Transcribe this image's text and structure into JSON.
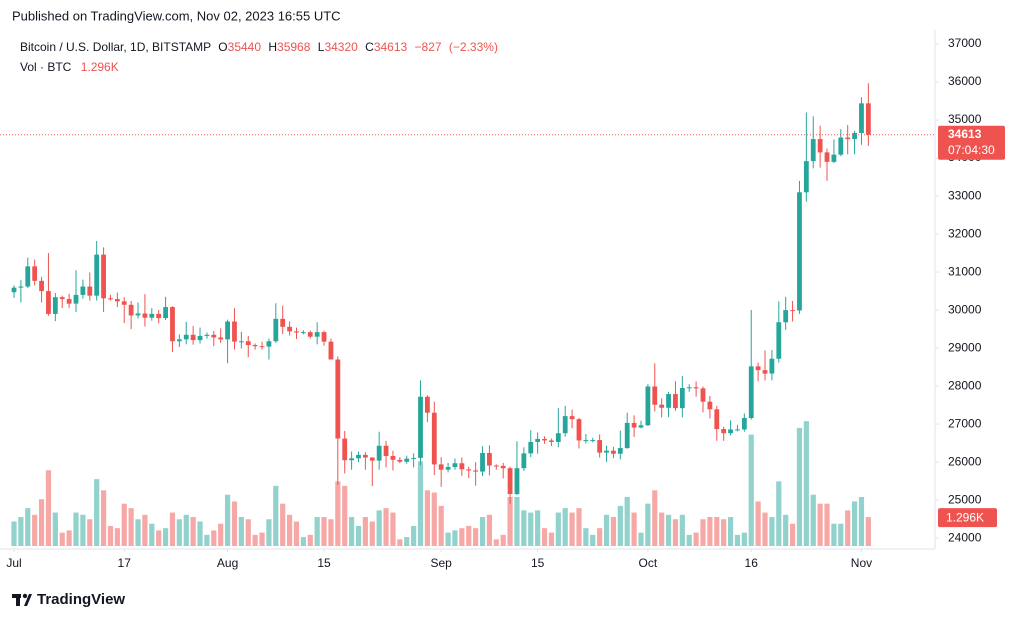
{
  "published": "Published on TradingView.com, Nov 02, 2023 16:55 UTC",
  "footer": "TradingView",
  "chart_data": {
    "type": "candlestick",
    "title": "Bitcoin / U.S. Dollar, 1D, BITSTAMP",
    "volume_title": "Vol · BTC",
    "countdown": "07:04:30",
    "legend": {
      "prefixes": [
        "O",
        "H",
        "L",
        "C"
      ],
      "change": {
        "value": -827,
        "label": "−827"
      },
      "change_pct": {
        "value": -2.33,
        "label": "(−2.33%)"
      }
    },
    "up_color": "#26a69a",
    "down_color": "#ef5350",
    "volume_opacity": 0.5,
    "grid": false,
    "ylim": [
      23740,
      37370
    ],
    "yticks": [
      24000,
      25000,
      26000,
      27000,
      28000,
      29000,
      30000,
      31000,
      32000,
      33000,
      34000,
      35000,
      36000,
      37000
    ],
    "volume_ylim": [
      0,
      7000
    ],
    "xticks": [
      {
        "value": "2023-07-01",
        "label": "Jul"
      },
      {
        "value": "2023-07-17",
        "label": "17"
      },
      {
        "value": "2023-08-01",
        "label": "Aug"
      },
      {
        "value": "2023-08-15",
        "label": "15"
      },
      {
        "value": "2023-09-01",
        "label": "Sep"
      },
      {
        "value": "2023-09-15",
        "label": "15"
      },
      {
        "value": "2023-10-01",
        "label": "Oct"
      },
      {
        "value": "2023-10-16",
        "label": "16"
      },
      {
        "value": "2023-11-01",
        "label": "Nov"
      }
    ],
    "categories": [
      "2023-07-01",
      "2023-07-02",
      "2023-07-03",
      "2023-07-04",
      "2023-07-05",
      "2023-07-06",
      "2023-07-07",
      "2023-07-08",
      "2023-07-09",
      "2023-07-10",
      "2023-07-11",
      "2023-07-12",
      "2023-07-13",
      "2023-07-14",
      "2023-07-15",
      "2023-07-16",
      "2023-07-17",
      "2023-07-18",
      "2023-07-19",
      "2023-07-20",
      "2023-07-21",
      "2023-07-22",
      "2023-07-23",
      "2023-07-24",
      "2023-07-25",
      "2023-07-26",
      "2023-07-27",
      "2023-07-28",
      "2023-07-29",
      "2023-07-30",
      "2023-07-31",
      "2023-08-01",
      "2023-08-02",
      "2023-08-03",
      "2023-08-04",
      "2023-08-05",
      "2023-08-06",
      "2023-08-07",
      "2023-08-08",
      "2023-08-09",
      "2023-08-10",
      "2023-08-11",
      "2023-08-12",
      "2023-08-13",
      "2023-08-14",
      "2023-08-15",
      "2023-08-16",
      "2023-08-17",
      "2023-08-18",
      "2023-08-19",
      "2023-08-20",
      "2023-08-21",
      "2023-08-22",
      "2023-08-23",
      "2023-08-24",
      "2023-08-25",
      "2023-08-26",
      "2023-08-27",
      "2023-08-28",
      "2023-08-29",
      "2023-08-30",
      "2023-08-31",
      "2023-09-01",
      "2023-09-02",
      "2023-09-03",
      "2023-09-04",
      "2023-09-05",
      "2023-09-06",
      "2023-09-07",
      "2023-09-08",
      "2023-09-09",
      "2023-09-10",
      "2023-09-11",
      "2023-09-12",
      "2023-09-13",
      "2023-09-14",
      "2023-09-15",
      "2023-09-16",
      "2023-09-17",
      "2023-09-18",
      "2023-09-19",
      "2023-09-20",
      "2023-09-21",
      "2023-09-22",
      "2023-09-23",
      "2023-09-24",
      "2023-09-25",
      "2023-09-26",
      "2023-09-27",
      "2023-09-28",
      "2023-09-29",
      "2023-09-30",
      "2023-10-01",
      "2023-10-02",
      "2023-10-03",
      "2023-10-04",
      "2023-10-05",
      "2023-10-06",
      "2023-10-07",
      "2023-10-08",
      "2023-10-09",
      "2023-10-10",
      "2023-10-11",
      "2023-10-12",
      "2023-10-13",
      "2023-10-14",
      "2023-10-15",
      "2023-10-16",
      "2023-10-17",
      "2023-10-18",
      "2023-10-19",
      "2023-10-20",
      "2023-10-21",
      "2023-10-22",
      "2023-10-23",
      "2023-10-24",
      "2023-10-25",
      "2023-10-26",
      "2023-10-27",
      "2023-10-28",
      "2023-10-29",
      "2023-10-30",
      "2023-10-31",
      "2023-11-01",
      "2023-11-02"
    ],
    "open": [
      30470,
      30590,
      30620,
      31150,
      30770,
      30500,
      29900,
      30340,
      30290,
      30170,
      30400,
      30620,
      30380,
      31460,
      30310,
      30290,
      30230,
      30140,
      29860,
      29910,
      29800,
      29900,
      29790,
      30080,
      29180,
      29230,
      29350,
      29210,
      29320,
      29350,
      29280,
      29230,
      29700,
      29170,
      29180,
      29080,
      29050,
      29040,
      29180,
      29770,
      29560,
      29440,
      29410,
      29420,
      29300,
      29420,
      29170,
      28700,
      26620,
      26050,
      26100,
      26190,
      26120,
      26040,
      26430,
      26160,
      26060,
      26010,
      26090,
      26110,
      27720,
      27300,
      25940,
      25800,
      25870,
      25970,
      25810,
      25780,
      25750,
      26240,
      25910,
      25900,
      25840,
      25160,
      25840,
      26230,
      26530,
      26610,
      26570,
      26530,
      26760,
      27210,
      27130,
      26570,
      26580,
      26580,
      26250,
      26300,
      26220,
      26370,
      27030,
      26910,
      26970,
      27990,
      27510,
      27430,
      27790,
      27420,
      27950,
      27970,
      27940,
      27590,
      27390,
      26870,
      26760,
      26860,
      26860,
      27160,
      28520,
      28420,
      28330,
      28720,
      29680,
      30000,
      29990,
      33100,
      33920,
      34500,
      34150,
      33900,
      34090,
      34540,
      34500,
      34660,
      35440
    ],
    "high": [
      30650,
      30790,
      31380,
      31330,
      30880,
      31500,
      30450,
      30380,
      30430,
      31050,
      30800,
      30990,
      31820,
      31650,
      30400,
      30460,
      30340,
      30240,
      30200,
      30420,
      30050,
      30000,
      30350,
      30100,
      29360,
      29690,
      29580,
      29540,
      29410,
      29450,
      29520,
      29750,
      30050,
      29430,
      29320,
      29120,
      29170,
      29250,
      30180,
      30120,
      29700,
      29540,
      29470,
      29460,
      29680,
      29460,
      29250,
      28780,
      26820,
      26280,
      26280,
      26260,
      26130,
      26800,
      26560,
      26300,
      26130,
      26170,
      26230,
      28150,
      27760,
      27590,
      26130,
      25980,
      26090,
      26120,
      25880,
      26000,
      26420,
      26440,
      25940,
      25980,
      25880,
      26550,
      26390,
      26840,
      26780,
      26680,
      26620,
      27420,
      27480,
      27380,
      27160,
      26740,
      26640,
      26730,
      26430,
      26400,
      26830,
      27300,
      27230,
      27090,
      28050,
      28600,
      27680,
      27850,
      28130,
      28270,
      28050,
      28120,
      27990,
      27740,
      27480,
      26930,
      27100,
      26980,
      27280,
      30000,
      28620,
      28940,
      28950,
      30230,
      30350,
      30240,
      33400,
      35200,
      35100,
      34850,
      34250,
      34490,
      34760,
      34870,
      34720,
      35600,
      35968
    ],
    "low": [
      30320,
      30200,
      30580,
      30650,
      30200,
      29850,
      29710,
      30050,
      30060,
      29950,
      30300,
      30250,
      30250,
      29950,
      30250,
      30080,
      29660,
      29500,
      29780,
      29570,
      29720,
      29650,
      29740,
      28900,
      29030,
      29100,
      29090,
      29120,
      29250,
      29050,
      29130,
      28600,
      28960,
      28990,
      28760,
      28960,
      28960,
      28700,
      29140,
      29370,
      29330,
      29240,
      29360,
      29250,
      29100,
      29060,
      28700,
      25400,
      25700,
      25800,
      26000,
      25800,
      25370,
      25800,
      25860,
      25780,
      25970,
      25960,
      25860,
      25920,
      27050,
      25660,
      25350,
      25730,
      25800,
      25640,
      25580,
      25380,
      25630,
      25650,
      25800,
      25570,
      24900,
      25130,
      25770,
      26130,
      26220,
      26480,
      26420,
      26390,
      26670,
      26890,
      26360,
      26490,
      26520,
      26120,
      26000,
      26100,
      26070,
      26350,
      26660,
      26890,
      26950,
      27330,
      27180,
      27180,
      27350,
      27180,
      27850,
      27720,
      27310,
      27150,
      26560,
      26560,
      26700,
      26810,
      26800,
      27120,
      28130,
      28150,
      28150,
      28620,
      29480,
      29700,
      29900,
      32850,
      33730,
      33750,
      33400,
      33870,
      34050,
      34100,
      34100,
      34350,
      34320
    ],
    "close": [
      30590,
      30620,
      31150,
      30770,
      30500,
      29900,
      30340,
      30290,
      30170,
      30400,
      30620,
      30380,
      31460,
      30310,
      30290,
      30230,
      30140,
      29860,
      29910,
      29800,
      29900,
      29790,
      30080,
      29180,
      29230,
      29350,
      29210,
      29320,
      29350,
      29280,
      29230,
      29700,
      29170,
      29180,
      29080,
      29050,
      29040,
      29180,
      29770,
      29560,
      29440,
      29410,
      29420,
      29300,
      29420,
      29170,
      28700,
      26620,
      26050,
      26100,
      26190,
      26120,
      26040,
      26430,
      26160,
      26060,
      26010,
      26090,
      26110,
      27720,
      27300,
      25940,
      25800,
      25870,
      25970,
      25810,
      25780,
      25750,
      26240,
      25910,
      25900,
      25840,
      25160,
      25840,
      26230,
      26530,
      26610,
      26570,
      26530,
      26760,
      27210,
      27130,
      26570,
      26580,
      26580,
      26250,
      26300,
      26220,
      26370,
      27030,
      26910,
      26970,
      27990,
      27510,
      27430,
      27790,
      27420,
      27950,
      27970,
      27940,
      27590,
      27390,
      26870,
      26760,
      26860,
      26860,
      27160,
      28520,
      28420,
      28330,
      28720,
      29680,
      30000,
      29990,
      33100,
      33920,
      34500,
      34150,
      33900,
      34090,
      34540,
      34500,
      34660,
      35440,
      34613
    ],
    "volume": [
      1100,
      1300,
      1700,
      1400,
      2100,
      3400,
      1500,
      600,
      700,
      1500,
      1400,
      1200,
      3000,
      2500,
      900,
      800,
      1900,
      1700,
      1200,
      1400,
      1000,
      700,
      800,
      1500,
      1200,
      1400,
      1300,
      1100,
      500,
      700,
      1000,
      2300,
      2000,
      1300,
      1200,
      500,
      600,
      1200,
      2700,
      1900,
      1400,
      1100,
      400,
      500,
      1300,
      1300,
      1200,
      2900,
      2700,
      1300,
      900,
      1300,
      1100,
      1600,
      1700,
      1500,
      300,
      400,
      900,
      3800,
      2500,
      2400,
      1800,
      600,
      700,
      800,
      900,
      800,
      1300,
      1400,
      300,
      500,
      2200,
      2200,
      1600,
      1500,
      1600,
      800,
      600,
      1500,
      1700,
      1500,
      1700,
      800,
      500,
      800,
      1400,
      1300,
      1800,
      2200,
      1500,
      600,
      1900,
      2500,
      1500,
      1400,
      1200,
      1400,
      500,
      600,
      1200,
      1300,
      1300,
      1200,
      1300,
      500,
      600,
      5000,
      2000,
      1500,
      1300,
      2900,
      1400,
      1000,
      5300,
      5600,
      2300,
      1900,
      1900,
      1000,
      1000,
      1600,
      2000,
      2200,
      1296
    ],
    "volume_last_label": "1.296K"
  }
}
